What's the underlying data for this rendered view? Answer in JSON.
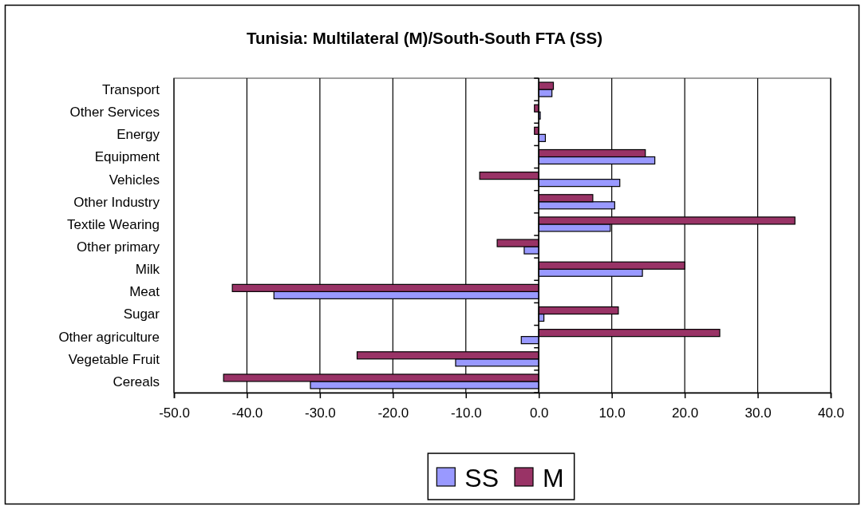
{
  "chart_data": {
    "type": "bar",
    "orientation": "horizontal",
    "title": "Tunisia: Multilateral (M)/South-South FTA (SS)",
    "categories": [
      "Transport",
      "Other Services",
      "Energy",
      "Equipment",
      "Vehicles",
      "Other Industry",
      "Textile Wearing",
      "Other primary",
      "Milk",
      "Meat",
      "Sugar",
      "Other agriculture",
      "Vegetable Fruit",
      "Cereals"
    ],
    "series": [
      {
        "name": "SS",
        "color": "#9999ff",
        "values": [
          1.8,
          0.2,
          0.9,
          15.9,
          11.1,
          10.4,
          9.8,
          -2.0,
          14.2,
          -36.3,
          0.7,
          -2.4,
          -11.4,
          -31.3
        ]
      },
      {
        "name": "M",
        "color": "#993366",
        "values": [
          2.0,
          -0.6,
          -0.6,
          14.6,
          -8.1,
          7.4,
          35.1,
          -5.7,
          20.0,
          -42.0,
          10.9,
          24.8,
          -24.9,
          -43.2
        ]
      }
    ],
    "xlim": [
      -50,
      40
    ],
    "xticks": [
      {
        "value": -50,
        "label": "-50.0"
      },
      {
        "value": -40,
        "label": "-40.0"
      },
      {
        "value": -30,
        "label": "-30.0"
      },
      {
        "value": -20,
        "label": "-20.0"
      },
      {
        "value": -10,
        "label": "-10.0"
      },
      {
        "value": 0,
        "label": "0.0"
      },
      {
        "value": 10,
        "label": "10.0"
      },
      {
        "value": 20,
        "label": "20.0"
      },
      {
        "value": 30,
        "label": "30.0"
      },
      {
        "value": 40,
        "label": "40.0"
      }
    ],
    "grid": "x",
    "legend": "bottom"
  }
}
